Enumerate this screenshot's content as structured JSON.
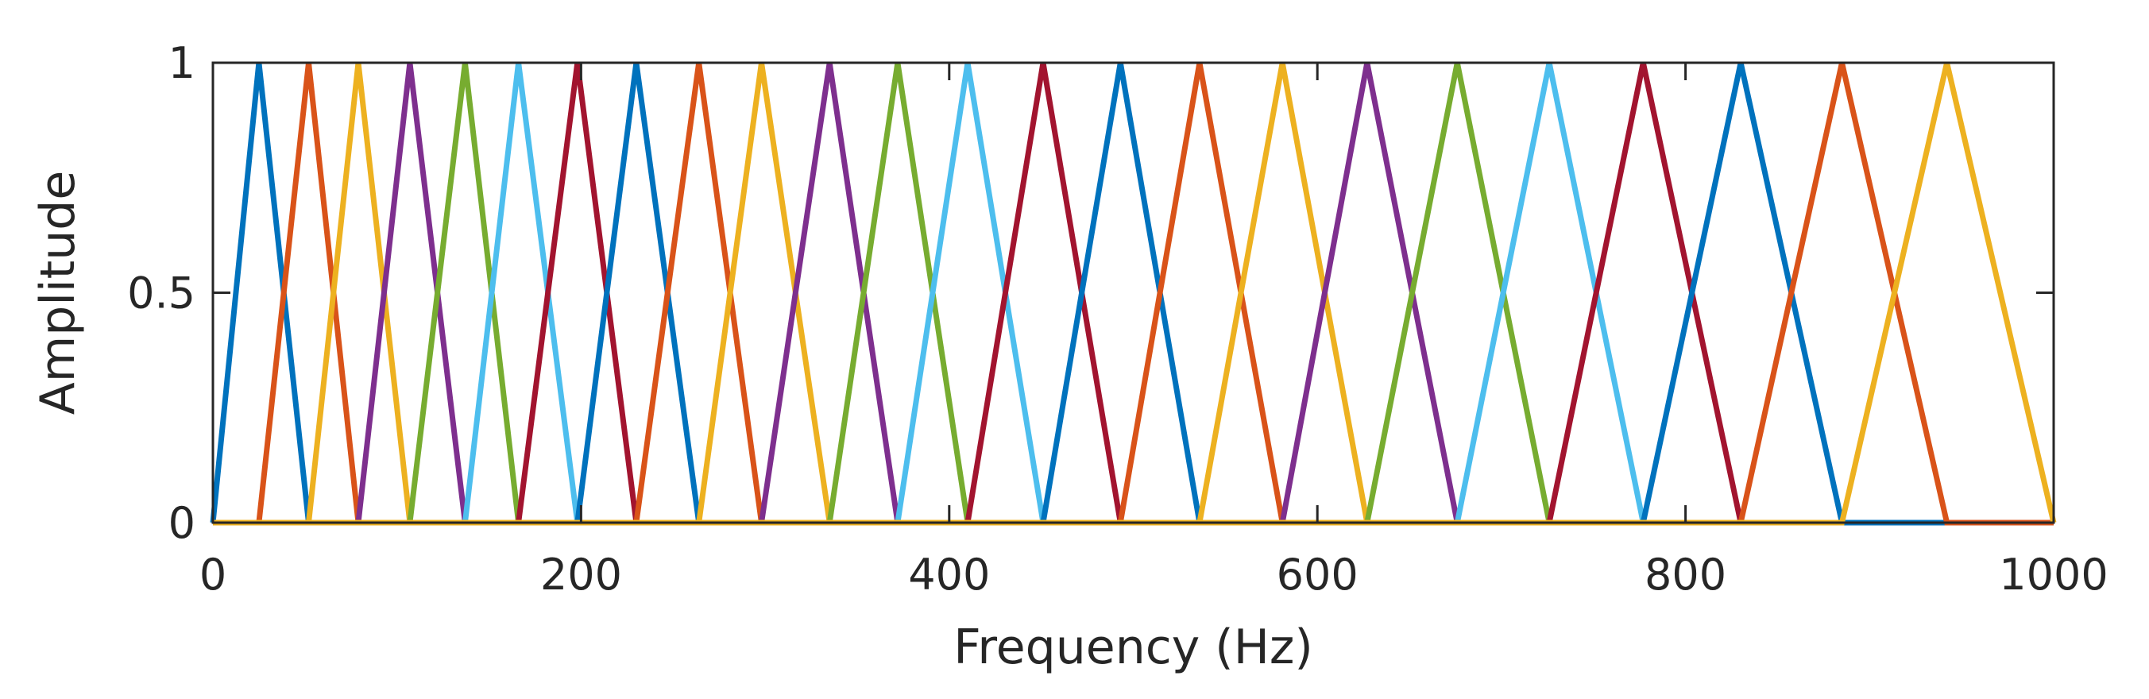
{
  "chart_data": {
    "type": "line",
    "title": "",
    "xlabel": "Frequency (Hz)",
    "ylabel": "Amplitude",
    "xlim": [
      0,
      1000
    ],
    "ylim": [
      0,
      1
    ],
    "x_ticks": [
      "0",
      "200",
      "400",
      "600",
      "800",
      "1000"
    ],
    "y_ticks": [
      "0",
      "0.5",
      "1"
    ],
    "grid": false,
    "legend": "none",
    "colors": [
      "#0072BD",
      "#D95319",
      "#EDB120",
      "#7E2F8E",
      "#77AC30",
      "#4DBEEE",
      "#A2142F"
    ],
    "filter_points_hz": [
      0,
      25,
      52,
      79,
      107,
      137,
      166,
      198,
      230,
      264,
      298,
      335,
      372,
      410,
      451,
      493,
      536,
      581,
      627,
      676,
      726,
      777,
      830,
      885,
      942,
      1000
    ],
    "series": [
      {
        "x": [
          0,
          25,
          52
        ],
        "y": [
          0,
          1,
          0
        ]
      },
      {
        "x": [
          25,
          52,
          79
        ],
        "y": [
          0,
          1,
          0
        ]
      },
      {
        "x": [
          52,
          79,
          107
        ],
        "y": [
          0,
          1,
          0
        ]
      },
      {
        "x": [
          79,
          107,
          137
        ],
        "y": [
          0,
          1,
          0
        ]
      },
      {
        "x": [
          107,
          137,
          166
        ],
        "y": [
          0,
          1,
          0
        ]
      },
      {
        "x": [
          137,
          166,
          198
        ],
        "y": [
          0,
          1,
          0
        ]
      },
      {
        "x": [
          166,
          198,
          230
        ],
        "y": [
          0,
          1,
          0
        ]
      },
      {
        "x": [
          198,
          230,
          264
        ],
        "y": [
          0,
          1,
          0
        ]
      },
      {
        "x": [
          230,
          264,
          298
        ],
        "y": [
          0,
          1,
          0
        ]
      },
      {
        "x": [
          264,
          298,
          335
        ],
        "y": [
          0,
          1,
          0
        ]
      },
      {
        "x": [
          298,
          335,
          372
        ],
        "y": [
          0,
          1,
          0
        ]
      },
      {
        "x": [
          335,
          372,
          410
        ],
        "y": [
          0,
          1,
          0
        ]
      },
      {
        "x": [
          372,
          410,
          451
        ],
        "y": [
          0,
          1,
          0
        ]
      },
      {
        "x": [
          410,
          451,
          493
        ],
        "y": [
          0,
          1,
          0
        ]
      },
      {
        "x": [
          451,
          493,
          536
        ],
        "y": [
          0,
          1,
          0
        ]
      },
      {
        "x": [
          493,
          536,
          581
        ],
        "y": [
          0,
          1,
          0
        ]
      },
      {
        "x": [
          536,
          581,
          627
        ],
        "y": [
          0,
          1,
          0
        ]
      },
      {
        "x": [
          581,
          627,
          676
        ],
        "y": [
          0,
          1,
          0
        ]
      },
      {
        "x": [
          627,
          676,
          726
        ],
        "y": [
          0,
          1,
          0
        ]
      },
      {
        "x": [
          676,
          726,
          777
        ],
        "y": [
          0,
          1,
          0
        ]
      },
      {
        "x": [
          726,
          777,
          830
        ],
        "y": [
          0,
          1,
          0
        ]
      },
      {
        "x": [
          777,
          830,
          885
        ],
        "y": [
          0,
          1,
          0
        ]
      },
      {
        "x": [
          830,
          885,
          942
        ],
        "y": [
          0,
          1,
          0
        ]
      },
      {
        "x": [
          885,
          942,
          1000
        ],
        "y": [
          0,
          1,
          0
        ]
      }
    ]
  }
}
